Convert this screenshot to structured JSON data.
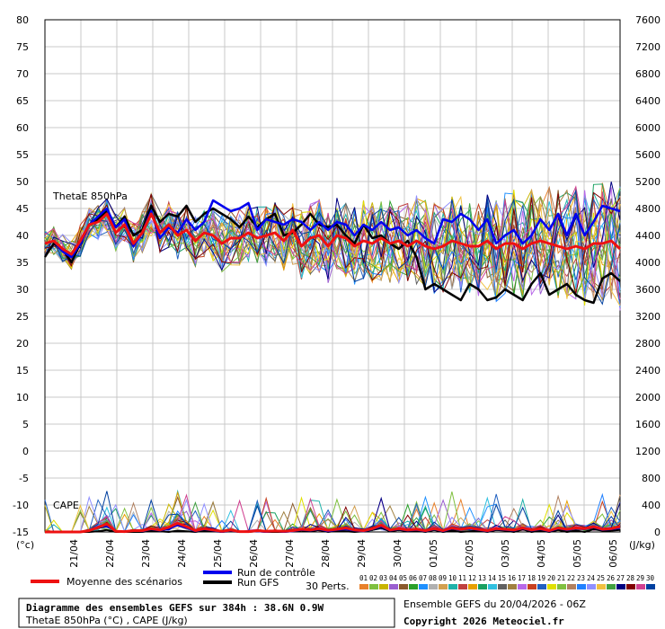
{
  "chart_data": {
    "type": "line",
    "left_axis": {
      "unit": "(°c)",
      "ticks": [
        80,
        75,
        70,
        65,
        60,
        55,
        50,
        45,
        40,
        35,
        30,
        25,
        20,
        15,
        10,
        5,
        0,
        -5,
        -10,
        -15
      ],
      "ylim": [
        -15,
        80
      ]
    },
    "right_axis": {
      "unit": "(J/kg)",
      "ticks": [
        7600,
        7200,
        6800,
        6400,
        6000,
        5600,
        5200,
        4800,
        4400,
        4000,
        3600,
        3200,
        2800,
        2400,
        2000,
        1600,
        1200,
        800,
        400,
        0
      ],
      "ylim": [
        0,
        7600
      ]
    },
    "dates": [
      "21/04",
      "22/04",
      "23/04",
      "24/04",
      "25/04",
      "26/04",
      "27/04",
      "28/04",
      "29/04",
      "30/04",
      "01/05",
      "02/05",
      "03/05",
      "04/05",
      "05/05",
      "06/05"
    ],
    "grid": true,
    "panel_labels": {
      "thetae": "ThetaE 850hPa",
      "cape": "CAPE"
    },
    "series_meta": {
      "mean": {
        "name": "Moyenne des scénarios",
        "color": "#ee1111"
      },
      "control": {
        "name": "Run de contrôle",
        "color": "#0000ee"
      },
      "gfs": {
        "name": "Run GFS",
        "color": "#000000"
      }
    },
    "mean_thetae": [
      38.5,
      39,
      37.5,
      36.5,
      39,
      42,
      42.5,
      44,
      40.5,
      42,
      38.5,
      40.5,
      44,
      40.5,
      42,
      40,
      41,
      39,
      40.5,
      40,
      38.5,
      39.5,
      39.5,
      40.5,
      39.5,
      40,
      40.5,
      39,
      41,
      38,
      39.5,
      40,
      38,
      40,
      39.5,
      38,
      39,
      38.5,
      39.5,
      38.5,
      39,
      38,
      39,
      38,
      37.5,
      38,
      39,
      38.5,
      38,
      38,
      39,
      37.5,
      38.5,
      38.5,
      37.5,
      38.5,
      39,
      38.5,
      38,
      37.5,
      38,
      37.5,
      38.5,
      38.5,
      39,
      37.5
    ],
    "control_thetae": [
      38.5,
      39,
      37,
      36,
      38.5,
      42,
      43.5,
      45,
      41.5,
      43,
      38,
      40.5,
      44.5,
      39.5,
      41.5,
      40.5,
      43,
      41,
      42.5,
      46.5,
      45.5,
      44.5,
      45,
      46,
      41,
      43,
      42.5,
      42,
      43,
      42.5,
      41,
      42.5,
      41,
      42.5,
      42,
      40,
      42,
      41,
      42.5,
      41,
      41.5,
      40,
      41,
      39.5,
      38.5,
      43,
      42.5,
      44,
      43,
      41,
      43,
      38.5,
      40,
      41,
      38.5,
      40,
      43,
      41,
      44,
      40,
      44,
      40,
      42.5,
      45.5,
      45,
      44.5
    ],
    "gfs_thetae": [
      36,
      38.5,
      37.5,
      35,
      38.5,
      42,
      43,
      44.5,
      41.5,
      43.5,
      40,
      41,
      45.5,
      42.5,
      44,
      43.5,
      45.5,
      42.5,
      44,
      45,
      44,
      43,
      41.5,
      43.5,
      41.5,
      43,
      44,
      40,
      40.5,
      42,
      44,
      42,
      41.5,
      42,
      40,
      38.5,
      42,
      39.5,
      40,
      38.5,
      37.5,
      39,
      36,
      30,
      31,
      30,
      29,
      28,
      31,
      30,
      28,
      28.5,
      30,
      29,
      28,
      31,
      33,
      29,
      30,
      31,
      29,
      28,
      27.5,
      32,
      33,
      31.5
    ],
    "mean_cape": [
      0,
      0,
      0,
      0,
      0,
      20,
      70,
      120,
      10,
      5,
      20,
      20,
      50,
      30,
      70,
      130,
      80,
      20,
      50,
      30,
      10,
      30,
      5,
      5,
      20,
      10,
      15,
      10,
      20,
      40,
      30,
      50,
      25,
      40,
      60,
      30,
      20,
      50,
      100,
      30,
      50,
      30,
      40,
      20,
      50,
      20,
      60,
      40,
      60,
      40,
      20,
      50,
      40,
      30,
      60,
      30,
      50,
      20,
      60,
      40,
      60,
      50,
      80,
      40,
      50,
      80
    ],
    "gfs_cape": [
      0,
      0,
      0,
      0,
      0,
      0,
      10,
      30,
      0,
      0,
      0,
      0,
      20,
      10,
      0,
      20,
      10,
      0,
      20,
      10,
      0,
      10,
      0,
      0,
      10,
      0,
      0,
      0,
      10,
      20,
      10,
      30,
      0,
      20,
      10,
      0,
      10,
      30,
      60,
      10,
      30,
      10,
      20,
      0,
      30,
      0,
      20,
      0,
      10,
      20,
      0,
      30,
      20,
      0,
      40,
      0,
      20,
      0,
      30,
      0,
      20,
      0,
      40,
      20,
      20,
      30
    ],
    "control_cape": [
      0,
      0,
      0,
      0,
      0,
      20,
      80,
      90,
      10,
      0,
      20,
      10,
      40,
      20,
      50,
      100,
      60,
      10,
      40,
      20,
      0,
      20,
      0,
      10,
      10,
      0,
      10,
      0,
      10,
      30,
      20,
      40,
      10,
      30,
      40,
      20,
      10,
      40,
      80,
      20,
      40,
      20,
      30,
      10,
      40,
      10,
      50,
      30,
      50,
      30,
      10,
      40,
      30,
      20,
      50,
      20,
      40,
      10,
      50,
      30,
      50,
      40,
      70,
      30,
      40,
      60
    ]
  },
  "legend": {
    "mean": "Moyenne des scénarios",
    "control": "Run de contrôle",
    "gfs": "Run GFS",
    "perts_label": "30 Perts.",
    "pert_numbers": [
      "01",
      "02",
      "03",
      "04",
      "05",
      "06",
      "07",
      "08",
      "09",
      "10",
      "11",
      "12",
      "13",
      "14",
      "15",
      "16",
      "17",
      "18",
      "19",
      "20",
      "21",
      "22",
      "23",
      "24",
      "25",
      "26",
      "27",
      "28",
      "29",
      "30"
    ],
    "pert_colors": [
      "#e8802a",
      "#7fc03f",
      "#c8b400",
      "#9b5fd0",
      "#8a5a2b",
      "#2aa02a",
      "#1e90ff",
      "#b0b0b0",
      "#d2a050",
      "#20b2aa",
      "#c04040",
      "#e8a000",
      "#18a060",
      "#30c0e0",
      "#606060",
      "#a08040",
      "#b868e8",
      "#c84020",
      "#2060c0",
      "#e0e000",
      "#80c040",
      "#b08060",
      "#2080ff",
      "#9090ff",
      "#f0c040",
      "#40a040",
      "#000080",
      "#800000",
      "#d04090",
      "#0040a0"
    ]
  },
  "footer": {
    "title": "Diagramme des ensembles GEFS sur 384h : 38.6N 0.9W",
    "subtitle": "ThetaE 850hPa (°C) , CAPE (J/kg)",
    "ensemble": "Ensemble GEFS du 20/04/2026 - 06Z",
    "copyright": "Copyright 2026 Meteociel.fr"
  }
}
